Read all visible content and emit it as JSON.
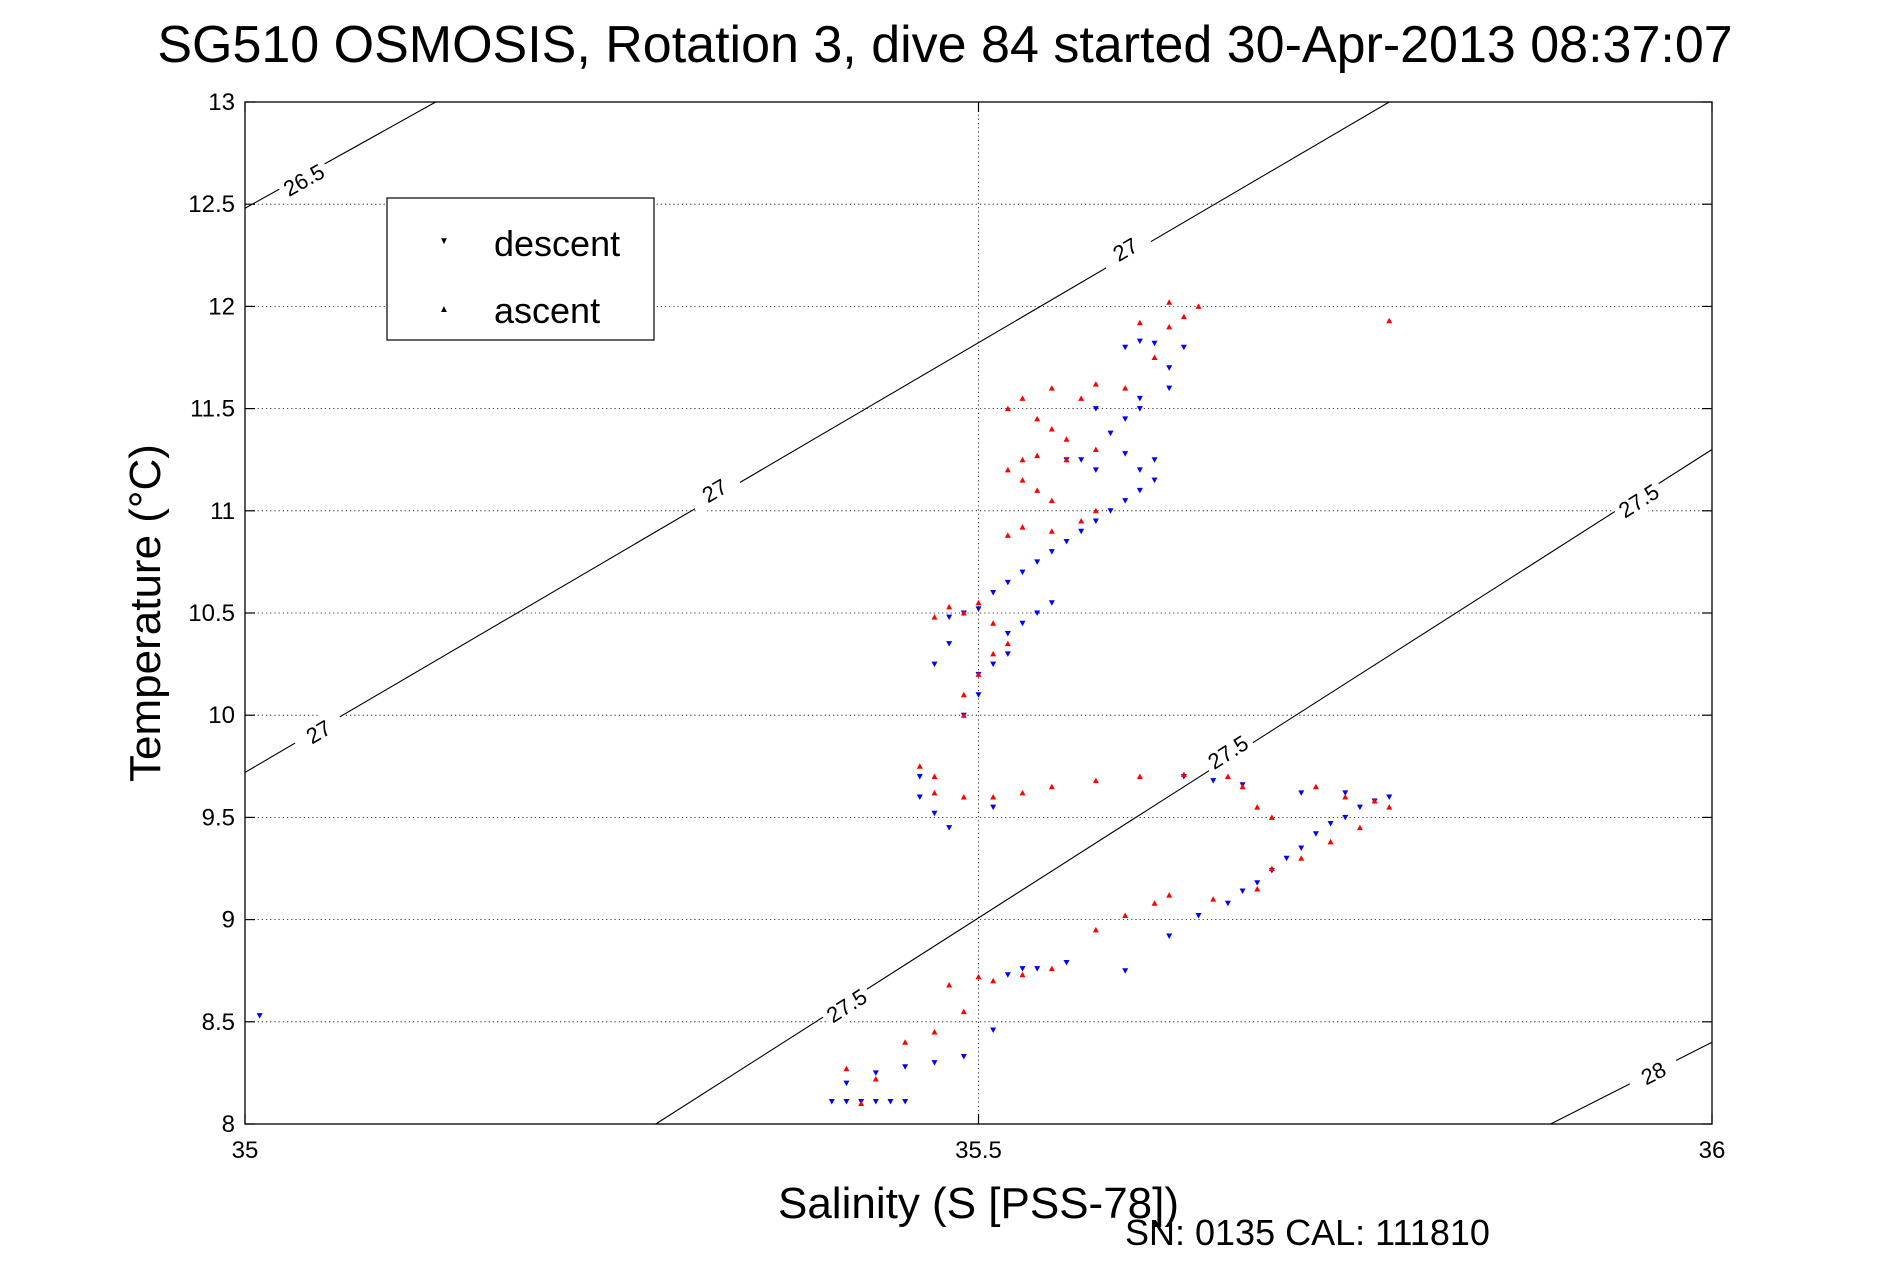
{
  "chart_data": {
    "type": "scatter",
    "title": "SG510 OSMOSIS, Rotation 3, dive 84 started 30-Apr-2013 08:37:07",
    "xlabel": "Salinity (S [PSS-78])",
    "ylabel": "Temperature (°C)",
    "xlim": [
      35,
      36
    ],
    "ylim": [
      8,
      13
    ],
    "xticks": [
      35,
      35.5,
      36
    ],
    "xtick_labels": [
      "35",
      "35.5",
      "36"
    ],
    "yticks": [
      8,
      8.5,
      9,
      9.5,
      10,
      10.5,
      11,
      11.5,
      12,
      12.5,
      13
    ],
    "ytick_labels": [
      "8",
      "8.5",
      "9",
      "9.5",
      "10",
      "10.5",
      "11",
      "11.5",
      "12",
      "12.5",
      "13"
    ],
    "grid": "dotted",
    "legend_position": "top-left",
    "footer": "SN: 0135  CAL: 111810",
    "contours": [
      {
        "label": "26.5",
        "points": [
          [
            35.0,
            12.48
          ],
          [
            35.13,
            13.0
          ]
        ],
        "label_at": [
          [
            35.04,
            12.62
          ]
        ]
      },
      {
        "label": "27",
        "points": [
          [
            35.0,
            9.72
          ],
          [
            35.78,
            13.0
          ]
        ],
        "label_at": [
          [
            35.05,
            9.92
          ],
          [
            35.32,
            11.1
          ],
          [
            35.6,
            12.28
          ]
        ]
      },
      {
        "label": "27.5",
        "points": [
          [
            35.28,
            8.0
          ],
          [
            36.0,
            11.3
          ]
        ],
        "label_at": [
          [
            35.41,
            8.58
          ],
          [
            35.67,
            9.82
          ],
          [
            35.95,
            11.05
          ]
        ]
      },
      {
        "label": "28",
        "points": [
          [
            35.89,
            8.0
          ],
          [
            36.0,
            8.4
          ]
        ],
        "label_at": [
          [
            35.96,
            8.25
          ]
        ]
      }
    ],
    "series": [
      {
        "name": "descent",
        "color": "#0000ff",
        "marker": "triangle-down",
        "points": [
          [
            35.01,
            8.53
          ],
          [
            35.4,
            8.11
          ],
          [
            35.41,
            8.11
          ],
          [
            35.42,
            8.11
          ],
          [
            35.43,
            8.11
          ],
          [
            35.44,
            8.11
          ],
          [
            35.45,
            8.11
          ],
          [
            35.41,
            8.2
          ],
          [
            35.43,
            8.25
          ],
          [
            35.45,
            8.28
          ],
          [
            35.47,
            8.3
          ],
          [
            35.49,
            8.33
          ],
          [
            35.51,
            8.46
          ],
          [
            35.52,
            8.73
          ],
          [
            35.53,
            8.76
          ],
          [
            35.54,
            8.76
          ],
          [
            35.56,
            8.79
          ],
          [
            35.6,
            8.75
          ],
          [
            35.63,
            8.92
          ],
          [
            35.65,
            9.02
          ],
          [
            35.67,
            9.08
          ],
          [
            35.68,
            9.14
          ],
          [
            35.69,
            9.18
          ],
          [
            35.7,
            9.24
          ],
          [
            35.71,
            9.3
          ],
          [
            35.72,
            9.35
          ],
          [
            35.73,
            9.42
          ],
          [
            35.74,
            9.47
          ],
          [
            35.75,
            9.5
          ],
          [
            35.76,
            9.55
          ],
          [
            35.77,
            9.58
          ],
          [
            35.78,
            9.6
          ],
          [
            35.75,
            9.62
          ],
          [
            35.72,
            9.62
          ],
          [
            35.68,
            9.66
          ],
          [
            35.66,
            9.68
          ],
          [
            35.64,
            9.7
          ],
          [
            35.51,
            9.55
          ],
          [
            35.48,
            9.45
          ],
          [
            35.47,
            9.52
          ],
          [
            35.46,
            9.6
          ],
          [
            35.46,
            9.7
          ],
          [
            35.49,
            10.0
          ],
          [
            35.5,
            10.1
          ],
          [
            35.5,
            10.2
          ],
          [
            35.51,
            10.25
          ],
          [
            35.47,
            10.25
          ],
          [
            35.48,
            10.35
          ],
          [
            35.52,
            10.3
          ],
          [
            35.52,
            10.4
          ],
          [
            35.53,
            10.45
          ],
          [
            35.54,
            10.5
          ],
          [
            35.55,
            10.55
          ],
          [
            35.48,
            10.48
          ],
          [
            35.49,
            10.5
          ],
          [
            35.5,
            10.52
          ],
          [
            35.51,
            10.6
          ],
          [
            35.52,
            10.65
          ],
          [
            35.53,
            10.7
          ],
          [
            35.54,
            10.75
          ],
          [
            35.55,
            10.8
          ],
          [
            35.56,
            10.85
          ],
          [
            35.57,
            10.9
          ],
          [
            35.58,
            10.95
          ],
          [
            35.59,
            11.0
          ],
          [
            35.6,
            11.05
          ],
          [
            35.61,
            11.1
          ],
          [
            35.62,
            11.15
          ],
          [
            35.58,
            11.2
          ],
          [
            35.57,
            11.25
          ],
          [
            35.56,
            11.25
          ],
          [
            35.6,
            11.28
          ],
          [
            35.62,
            11.25
          ],
          [
            35.61,
            11.2
          ],
          [
            35.59,
            11.38
          ],
          [
            35.6,
            11.45
          ],
          [
            35.61,
            11.5
          ],
          [
            35.58,
            11.5
          ],
          [
            35.61,
            11.55
          ],
          [
            35.63,
            11.6
          ],
          [
            35.63,
            11.7
          ],
          [
            35.64,
            11.8
          ],
          [
            35.62,
            11.82
          ],
          [
            35.61,
            11.83
          ],
          [
            35.6,
            11.8
          ]
        ]
      },
      {
        "name": "ascent",
        "color": "#ff0000",
        "marker": "triangle-up",
        "points": [
          [
            35.41,
            8.27
          ],
          [
            35.42,
            8.1
          ],
          [
            35.43,
            8.22
          ],
          [
            35.45,
            8.4
          ],
          [
            35.47,
            8.45
          ],
          [
            35.49,
            8.55
          ],
          [
            35.48,
            8.68
          ],
          [
            35.5,
            8.72
          ],
          [
            35.51,
            8.7
          ],
          [
            35.53,
            8.73
          ],
          [
            35.55,
            8.76
          ],
          [
            35.58,
            8.95
          ],
          [
            35.6,
            9.02
          ],
          [
            35.62,
            9.08
          ],
          [
            35.63,
            9.12
          ],
          [
            35.66,
            9.1
          ],
          [
            35.69,
            9.15
          ],
          [
            35.7,
            9.25
          ],
          [
            35.72,
            9.3
          ],
          [
            35.74,
            9.38
          ],
          [
            35.76,
            9.45
          ],
          [
            35.78,
            9.55
          ],
          [
            35.77,
            9.58
          ],
          [
            35.75,
            9.6
          ],
          [
            35.73,
            9.65
          ],
          [
            35.7,
            9.5
          ],
          [
            35.69,
            9.55
          ],
          [
            35.68,
            9.65
          ],
          [
            35.67,
            9.7
          ],
          [
            35.64,
            9.71
          ],
          [
            35.61,
            9.7
          ],
          [
            35.58,
            9.68
          ],
          [
            35.55,
            9.65
          ],
          [
            35.53,
            9.62
          ],
          [
            35.51,
            9.6
          ],
          [
            35.49,
            9.6
          ],
          [
            35.47,
            9.62
          ],
          [
            35.47,
            9.7
          ],
          [
            35.46,
            9.75
          ],
          [
            35.49,
            10.0
          ],
          [
            35.49,
            10.1
          ],
          [
            35.5,
            10.2
          ],
          [
            35.51,
            10.3
          ],
          [
            35.52,
            10.35
          ],
          [
            35.51,
            10.45
          ],
          [
            35.49,
            10.5
          ],
          [
            35.47,
            10.48
          ],
          [
            35.48,
            10.53
          ],
          [
            35.5,
            10.55
          ],
          [
            35.52,
            10.88
          ],
          [
            35.53,
            10.92
          ],
          [
            35.55,
            10.9
          ],
          [
            35.57,
            10.95
          ],
          [
            35.58,
            11.0
          ],
          [
            35.55,
            11.05
          ],
          [
            35.54,
            11.1
          ],
          [
            35.53,
            11.15
          ],
          [
            35.52,
            11.2
          ],
          [
            35.53,
            11.25
          ],
          [
            35.54,
            11.27
          ],
          [
            35.56,
            11.25
          ],
          [
            35.58,
            11.3
          ],
          [
            35.56,
            11.35
          ],
          [
            35.55,
            11.4
          ],
          [
            35.54,
            11.45
          ],
          [
            35.52,
            11.5
          ],
          [
            35.53,
            11.55
          ],
          [
            35.55,
            11.6
          ],
          [
            35.57,
            11.55
          ],
          [
            35.58,
            11.62
          ],
          [
            35.6,
            11.6
          ],
          [
            35.62,
            11.75
          ],
          [
            35.63,
            11.9
          ],
          [
            35.64,
            11.95
          ],
          [
            35.65,
            12.0
          ],
          [
            35.63,
            12.02
          ],
          [
            35.61,
            11.92
          ],
          [
            35.78,
            11.93
          ]
        ]
      }
    ]
  }
}
